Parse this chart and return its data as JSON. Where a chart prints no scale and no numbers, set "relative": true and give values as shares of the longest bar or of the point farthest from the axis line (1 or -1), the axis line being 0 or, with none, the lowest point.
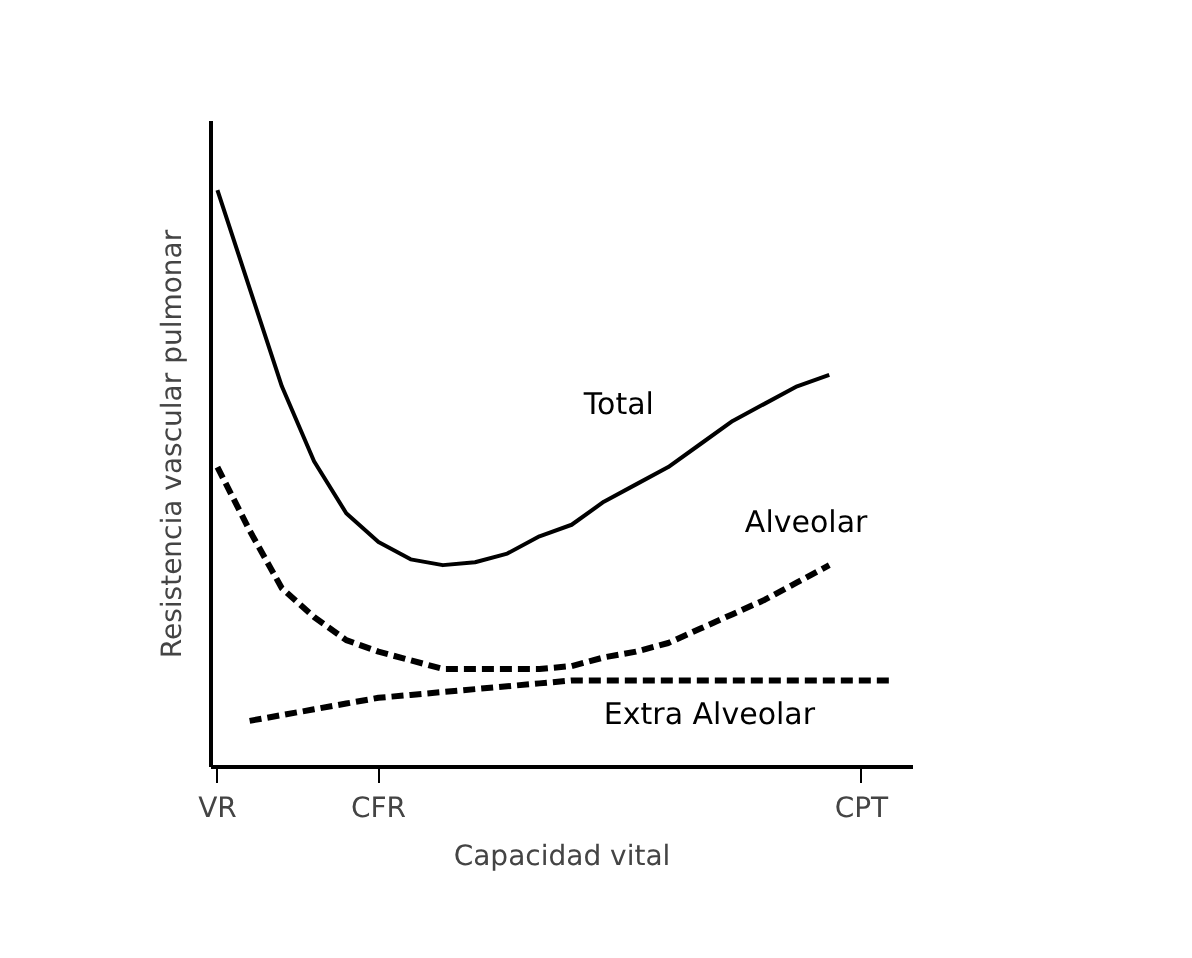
{
  "chart_data": {
    "type": "line",
    "relative": true,
    "xlabel": "Capacidad vital",
    "ylabel": "Resistencia vascular pulmonar",
    "categories": [
      "VR",
      null,
      null,
      null,
      null,
      "CFR",
      null,
      null,
      null,
      null,
      null,
      null,
      null,
      null,
      null,
      null,
      null,
      null,
      null,
      null,
      "CPT",
      null
    ],
    "grid": false,
    "marker": "none",
    "series": [
      {
        "name": "Total",
        "color": "#000000",
        "line_style": "solid",
        "values": [
          1,
          0.83,
          0.66,
          0.53,
          0.44,
          0.39,
          0.36,
          0.35,
          0.355,
          0.37,
          0.4,
          0.42,
          0.46,
          0.49,
          0.52,
          0.56,
          0.6,
          0.63,
          0.66,
          0.68,
          null,
          null
        ]
      },
      {
        "name": "Alveolar",
        "color": "#000000",
        "line_style": "dashed",
        "values": [
          0.52,
          0.41,
          0.31,
          0.26,
          0.22,
          0.2,
          0.185,
          0.17,
          0.17,
          0.17,
          0.17,
          0.175,
          0.19,
          0.2,
          0.215,
          0.24,
          0.265,
          0.29,
          0.32,
          0.35,
          null,
          null
        ]
      },
      {
        "name": "Extra Alveolar",
        "color": "#000000",
        "line_style": "dashed",
        "values": [
          null,
          0.08,
          0.09,
          0.1,
          0.11,
          0.12,
          0.125,
          0.13,
          0.135,
          0.14,
          0.145,
          0.15,
          0.15,
          0.15,
          0.15,
          0.15,
          0.15,
          0.15,
          0.15,
          0.15,
          0.15,
          0.15
        ]
      }
    ]
  }
}
